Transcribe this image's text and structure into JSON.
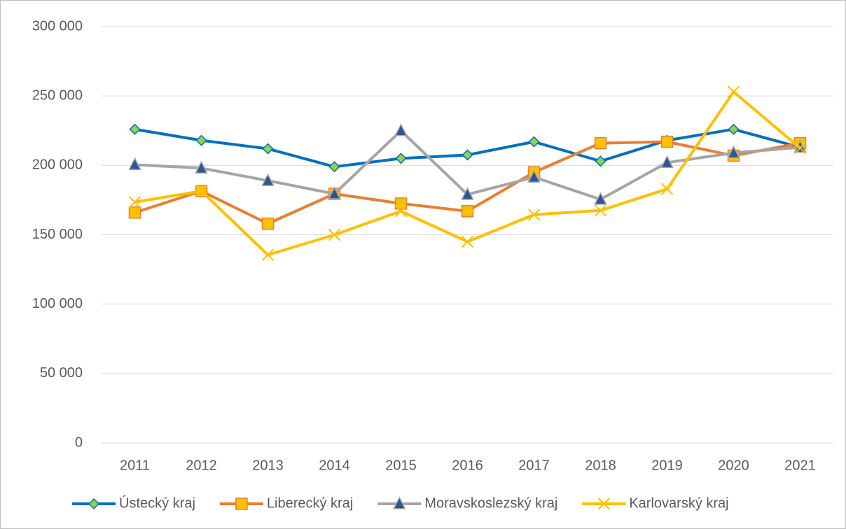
{
  "chart_data": {
    "type": "line",
    "categories": [
      "2011",
      "2012",
      "2013",
      "2014",
      "2015",
      "2016",
      "2017",
      "2018",
      "2019",
      "2020",
      "2021"
    ],
    "series": [
      {
        "name": "Ústecký kraj",
        "color": "#0070c0",
        "marker": "diamond",
        "marker_fill": "#92d050",
        "values": [
          226000,
          218000,
          212000,
          199000,
          205000,
          207500,
          217000,
          203000,
          218000,
          226000,
          213000
        ]
      },
      {
        "name": "Liberecký kraj",
        "color": "#ed7d31",
        "marker": "square",
        "marker_fill": "#ffc000",
        "values": [
          166000,
          181500,
          158000,
          179500,
          172500,
          167000,
          195000,
          216000,
          217000,
          207000,
          216000
        ]
      },
      {
        "name": "Moravskoslezský kraj",
        "color": "#a5a5a5",
        "marker": "triangle",
        "marker_fill": "#2f5597",
        "values": [
          200500,
          198000,
          189000,
          179500,
          225000,
          179000,
          191500,
          175500,
          202000,
          209000,
          213000
        ]
      },
      {
        "name": "Karlovarský kraj",
        "color": "#ffc000",
        "marker": "x",
        "marker_fill": "#ffc000",
        "values": [
          173500,
          181500,
          135500,
          150000,
          167000,
          145000,
          164500,
          167500,
          183000,
          253000,
          212500
        ]
      }
    ],
    "ylim": [
      0,
      300000
    ],
    "yticks": [
      0,
      {
        "value": 50000,
        "label": "50 000"
      },
      {
        "value": 100000,
        "label": "100 000"
      },
      {
        "value": 150000,
        "label": "150 000"
      },
      {
        "value": 200000,
        "label": "200 000"
      },
      {
        "value": 250000,
        "label": "250 000"
      },
      {
        "value": 300000,
        "label": "300 000"
      }
    ],
    "grid": true,
    "legend": "bottom"
  }
}
